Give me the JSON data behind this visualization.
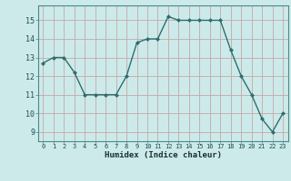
{
  "x": [
    0,
    1,
    2,
    3,
    4,
    5,
    6,
    7,
    8,
    9,
    10,
    11,
    12,
    13,
    14,
    15,
    16,
    17,
    18,
    19,
    20,
    21,
    22,
    23
  ],
  "y": [
    12.7,
    13.0,
    13.0,
    12.2,
    11.0,
    11.0,
    11.0,
    11.0,
    12.0,
    13.8,
    14.0,
    14.0,
    15.2,
    15.0,
    15.0,
    15.0,
    15.0,
    15.0,
    13.4,
    12.0,
    11.0,
    9.7,
    9.0,
    10.0
  ],
  "xlabel": "Humidex (Indice chaleur)",
  "xlim": [
    -0.5,
    23.5
  ],
  "ylim": [
    8.5,
    15.8
  ],
  "yticks": [
    9,
    10,
    11,
    12,
    13,
    14,
    15
  ],
  "xtick_labels": [
    "0",
    "1",
    "2",
    "3",
    "4",
    "5",
    "6",
    "7",
    "8",
    "9",
    "10",
    "11",
    "12",
    "13",
    "14",
    "15",
    "16",
    "17",
    "18",
    "19",
    "20",
    "21",
    "22",
    "23"
  ],
  "line_color": "#2d6e6e",
  "marker_color": "#2d6e6e",
  "bg_color": "#cdeaea",
  "grid_minor_color": "#b8d8d8",
  "grid_major_color": "#c4a8a8",
  "font_color": "#1a5050",
  "xlabel_color": "#1a3030",
  "spine_color": "#4a8a8a"
}
